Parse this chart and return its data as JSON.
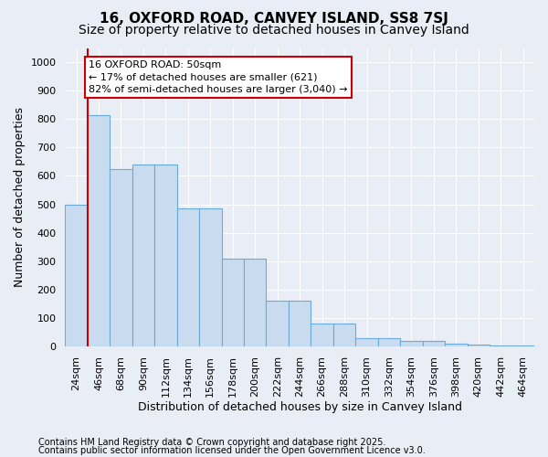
{
  "title1": "16, OXFORD ROAD, CANVEY ISLAND, SS8 7SJ",
  "title2": "Size of property relative to detached houses in Canvey Island",
  "xlabel": "Distribution of detached houses by size in Canvey Island",
  "ylabel": "Number of detached properties",
  "categories": [
    "24sqm",
    "46sqm",
    "68sqm",
    "90sqm",
    "112sqm",
    "134sqm",
    "156sqm",
    "178sqm",
    "200sqm",
    "222sqm",
    "244sqm",
    "266sqm",
    "288sqm",
    "310sqm",
    "332sqm",
    "354sqm",
    "376sqm",
    "398sqm",
    "420sqm",
    "442sqm",
    "464sqm"
  ],
  "values": [
    500,
    815,
    625,
    640,
    640,
    485,
    485,
    310,
    310,
    160,
    160,
    80,
    80,
    30,
    30,
    20,
    20,
    10,
    8,
    5,
    3
  ],
  "bar_color": "#c9dcef",
  "bar_edge_color": "#6aaad4",
  "background_color": "#e8edf6",
  "grid_color": "#ffffff",
  "vline_color": "#cc0000",
  "annotation_text": "16 OXFORD ROAD: 50sqm\n← 17% of detached houses are smaller (621)\n82% of semi-detached houses are larger (3,040) →",
  "annotation_box_color": "#ffffff",
  "annotation_box_edge_color": "#cc0000",
  "ylim": [
    0,
    1050
  ],
  "yticks": [
    0,
    100,
    200,
    300,
    400,
    500,
    600,
    700,
    800,
    900,
    1000
  ],
  "footer1": "Contains HM Land Registry data © Crown copyright and database right 2025.",
  "footer2": "Contains public sector information licensed under the Open Government Licence v3.0.",
  "title_fontsize": 11,
  "subtitle_fontsize": 10,
  "axis_fontsize": 9,
  "tick_fontsize": 8,
  "annotation_fontsize": 8,
  "footer_fontsize": 7
}
